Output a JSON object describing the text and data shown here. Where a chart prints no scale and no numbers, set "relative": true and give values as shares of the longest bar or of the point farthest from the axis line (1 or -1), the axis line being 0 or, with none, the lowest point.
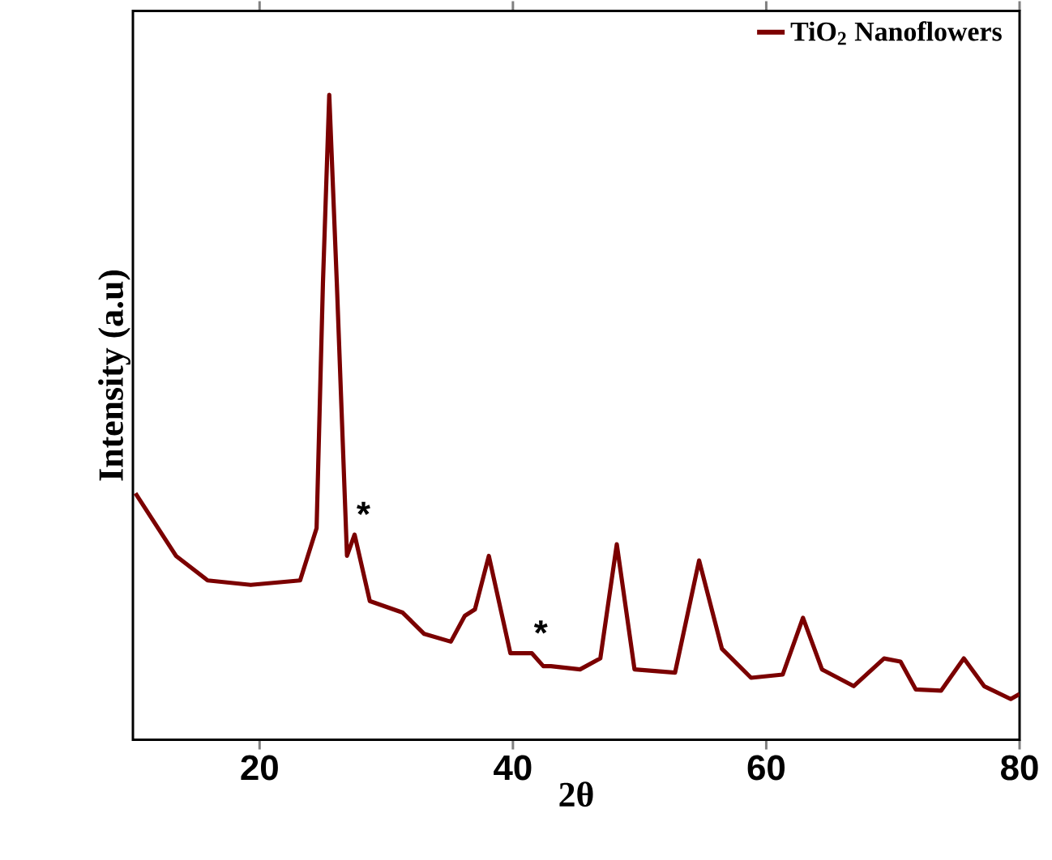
{
  "chart_data": {
    "type": "line",
    "relative": true,
    "xlabel": "2θ",
    "ylabel": "Intensity (a.u)",
    "x": [
      10.2,
      13.4,
      15.9,
      19.3,
      23.2,
      24.5,
      25.0,
      25.5,
      26.1,
      26.9,
      27.5,
      28.7,
      31.3,
      33.0,
      35.1,
      36.2,
      37.0,
      38.1,
      39.8,
      41.5,
      42.4,
      43.0,
      45.3,
      46.9,
      48.2,
      49.6,
      52.8,
      54.7,
      56.5,
      58.8,
      61.3,
      62.9,
      64.4,
      66.9,
      69.3,
      70.6,
      71.8,
      73.8,
      75.6,
      77.2,
      79.3,
      80.0
    ],
    "series": [
      {
        "name": "TiO$_{2}$ Nanoflowers",
        "color": "#7b0000",
        "values": [
          0.382,
          0.285,
          0.247,
          0.24,
          0.247,
          0.328,
          0.707,
          1.0,
          0.707,
          0.285,
          0.318,
          0.215,
          0.197,
          0.164,
          0.152,
          0.192,
          0.202,
          0.285,
          0.134,
          0.134,
          0.114,
          0.114,
          0.109,
          0.126,
          0.303,
          0.109,
          0.104,
          0.278,
          0.141,
          0.096,
          0.101,
          0.189,
          0.109,
          0.083,
          0.126,
          0.121,
          0.078,
          0.076,
          0.126,
          0.083,
          0.063,
          0.071
        ]
      }
    ],
    "xlim": [
      10,
      80
    ],
    "xticks": [
      20,
      40,
      60,
      80
    ],
    "annotations": [
      {
        "text": "*",
        "x": 27.5,
        "y": 0.318
      },
      {
        "text": "*",
        "x": 41.5,
        "y": 0.134
      }
    ],
    "legend": "top right",
    "grid": false,
    "marker": "none",
    "line_style": "solid"
  }
}
